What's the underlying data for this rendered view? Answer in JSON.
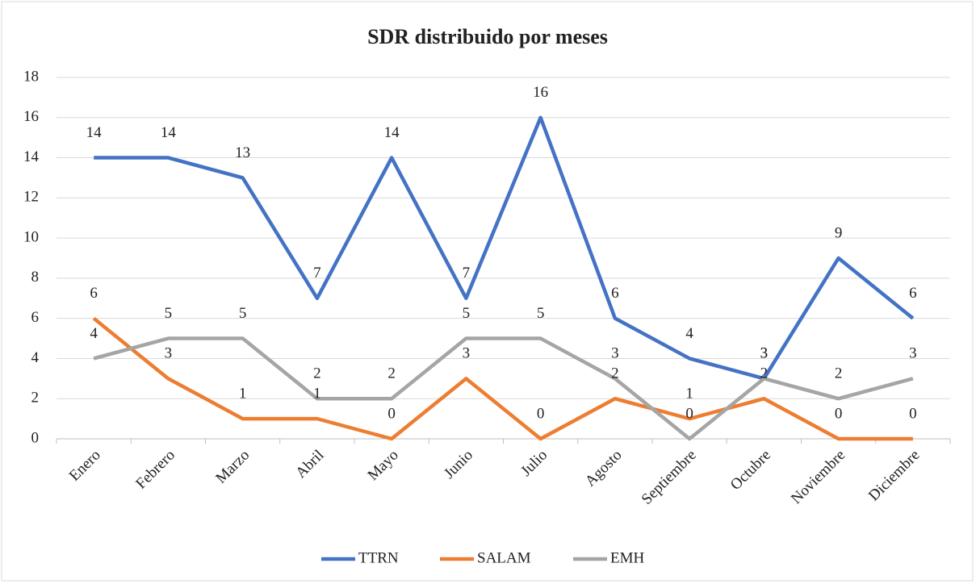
{
  "chart_data": {
    "type": "line",
    "title": "SDR distribuido por meses",
    "categories": [
      "Enero",
      "Febrero",
      "Marzo",
      "Abril",
      "Mayo",
      "Junio",
      "Julio",
      "Agosto",
      "Septiembre",
      "Octubre",
      "Noviembre",
      "Diciembre"
    ],
    "series": [
      {
        "name": "TTRN",
        "color": "#4472c4",
        "values": [
          14,
          14,
          13,
          7,
          14,
          7,
          16,
          6,
          4,
          3,
          9,
          6
        ]
      },
      {
        "name": "SALAM",
        "color": "#ed7d31",
        "values": [
          6,
          3,
          1,
          1,
          0,
          3,
          0,
          2,
          1,
          2,
          0,
          0
        ]
      },
      {
        "name": "EMH",
        "color": "#a5a5a5",
        "values": [
          4,
          5,
          5,
          2,
          2,
          5,
          5,
          3,
          0,
          3,
          2,
          3
        ]
      }
    ],
    "ylim": [
      0,
      18
    ],
    "yticks": [
      0,
      2,
      4,
      6,
      8,
      10,
      12,
      14,
      16,
      18
    ],
    "grid": true,
    "legend": "bottom"
  }
}
